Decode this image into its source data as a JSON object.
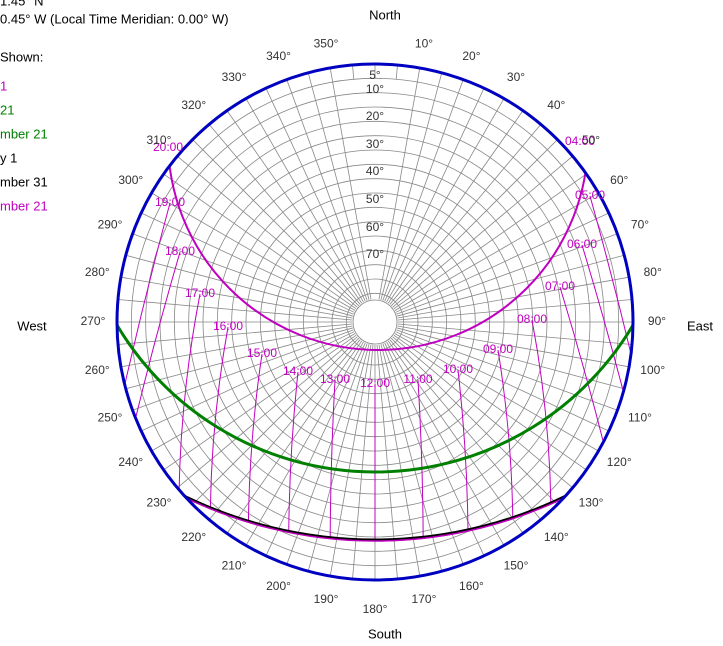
{
  "header": {
    "latitude_line": "1.45° N",
    "longitude_line": "0.45° W (Local Time Meridian: 0.00° W)",
    "shown_label": "Shown:"
  },
  "legend": [
    {
      "text": "1",
      "color": "#c000c0"
    },
    {
      "text": "21",
      "color": "#008000"
    },
    {
      "text": "mber 21",
      "color": "#008000"
    },
    {
      "text": "y 1",
      "color": "#000000"
    },
    {
      "text": "mber 31",
      "color": "#000000"
    },
    {
      "text": "mber 21",
      "color": "#c000c0"
    }
  ],
  "compass": {
    "north": "North",
    "south": "South",
    "east": "East",
    "west": "West"
  },
  "azimuth_labels": [
    "10°",
    "20°",
    "30°",
    "40°",
    "50°",
    "60°",
    "70°",
    "80°",
    "90°",
    "100°",
    "110°",
    "120°",
    "130°",
    "140°",
    "150°",
    "160°",
    "170°",
    "180°",
    "190°",
    "200°",
    "210°",
    "220°",
    "230°",
    "240°",
    "250°",
    "260°",
    "270°",
    "280°",
    "290°",
    "300°",
    "310°",
    "320°",
    "330°",
    "340°",
    "350°"
  ],
  "elevation_labels": [
    "5°",
    "10°",
    "20°",
    "30°",
    "40°",
    "50°",
    "60°",
    "70°"
  ],
  "hour_labels": [
    "04:00",
    "05:00",
    "06:00",
    "07:00",
    "08:00",
    "09:00",
    "10:00",
    "11:00",
    "12:00",
    "13:00",
    "14:00",
    "15:00",
    "16:00",
    "17:00",
    "18:00",
    "19:00",
    "20:00"
  ]
}
